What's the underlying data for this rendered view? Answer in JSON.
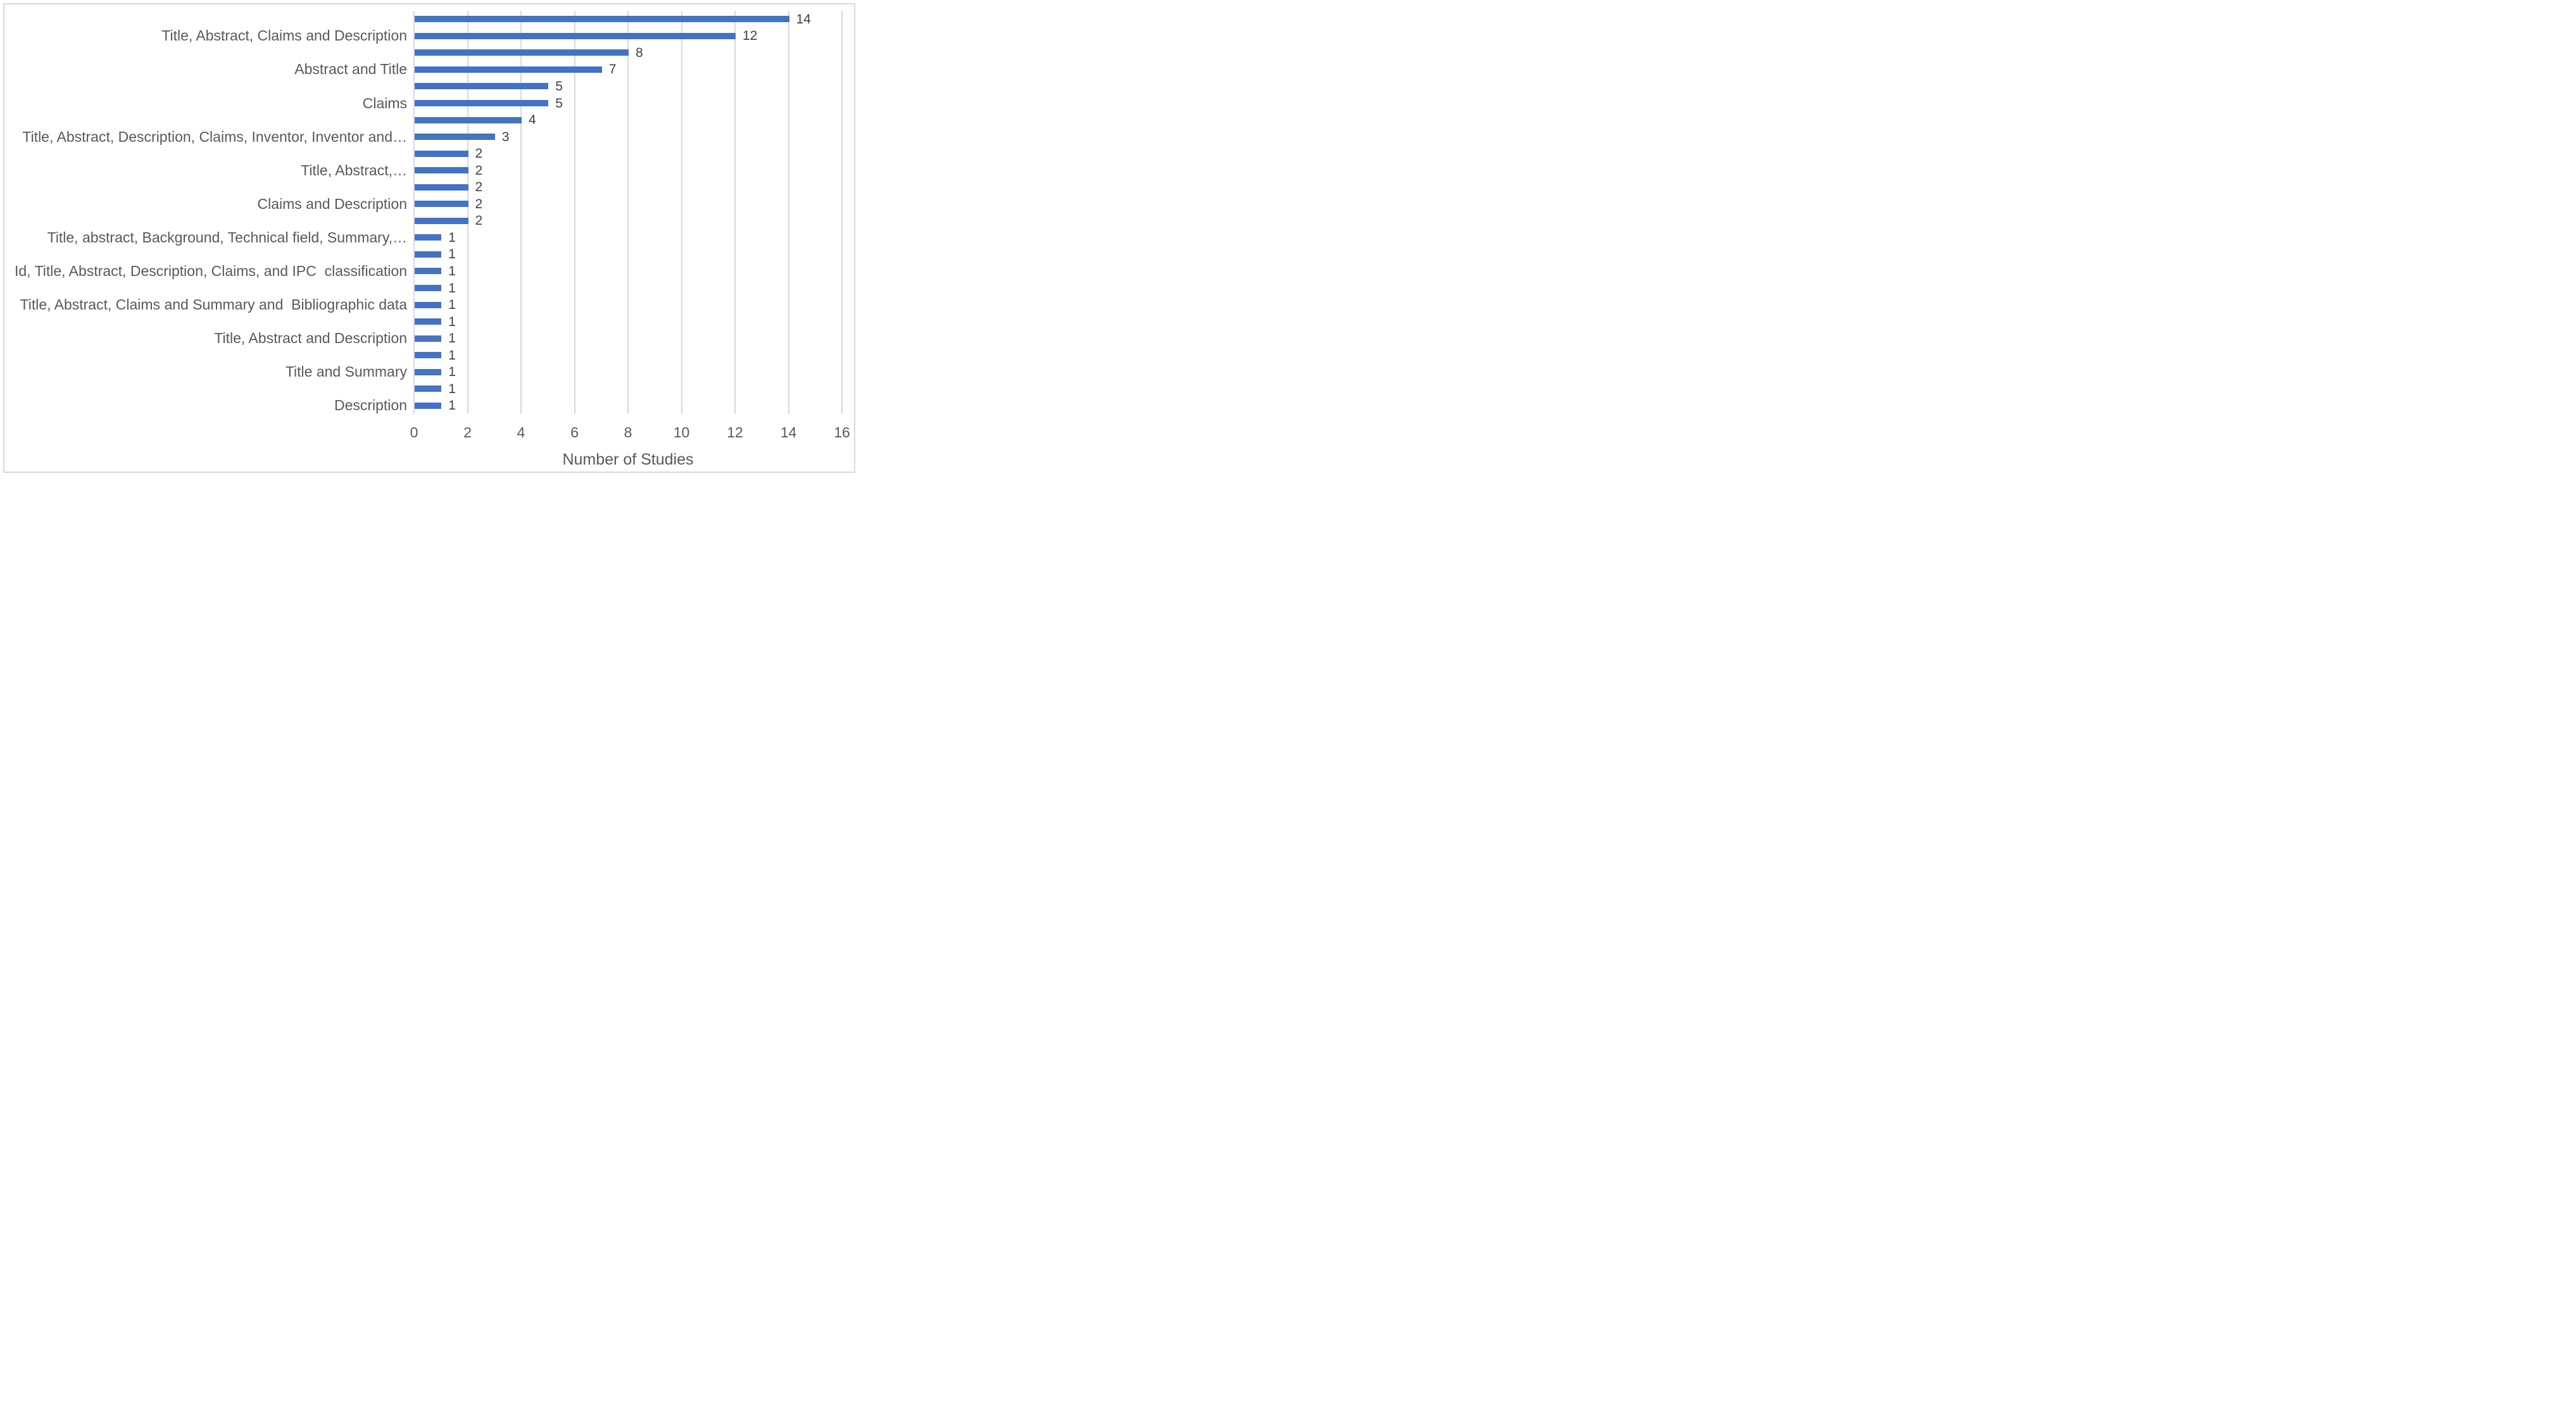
{
  "colors": {
    "bar": "#4472C4",
    "gridline": "#D9D9D9",
    "figure_border": "#D9D9D9",
    "text": "#595959",
    "value_label": "#404040",
    "background": "#FFFFFF"
  },
  "chart_data": {
    "type": "bar",
    "orientation": "horizontal",
    "title": "",
    "xlabel": "Number of Studies",
    "ylabel": "",
    "xlim": [
      0,
      16
    ],
    "xticks": [
      0,
      2,
      4,
      6,
      8,
      10,
      12,
      14,
      16
    ],
    "grid": "vertical gridlines every 2 units",
    "legend": "none",
    "data_labels": "value at end of each bar",
    "bars": [
      {
        "label": "",
        "value": 14
      },
      {
        "label": "Title, Abstract, Claims and Description",
        "value": 12
      },
      {
        "label": "",
        "value": 8
      },
      {
        "label": "Abstract and Title",
        "value": 7
      },
      {
        "label": "",
        "value": 5
      },
      {
        "label": "Claims",
        "value": 5
      },
      {
        "label": "",
        "value": 4
      },
      {
        "label": "Title, Abstract, Description, Claims, Inventor, Inventor and…",
        "value": 3
      },
      {
        "label": "",
        "value": 2
      },
      {
        "label": "Title, Abstract,…",
        "value": 2
      },
      {
        "label": "",
        "value": 2
      },
      {
        "label": "Claims and Description",
        "value": 2
      },
      {
        "label": "",
        "value": 2
      },
      {
        "label": "Title, abstract, Background, Technical field, Summary,…",
        "value": 1
      },
      {
        "label": "",
        "value": 1
      },
      {
        "label": "Id, Title, Abstract, Description, Claims, and IPC  classification",
        "value": 1
      },
      {
        "label": "",
        "value": 1
      },
      {
        "label": "Title, Abstract, Claims and Summary and  Bibliographic data",
        "value": 1
      },
      {
        "label": "",
        "value": 1
      },
      {
        "label": "Title, Abstract and Description",
        "value": 1
      },
      {
        "label": "",
        "value": 1
      },
      {
        "label": "Title and Summary",
        "value": 1
      },
      {
        "label": "",
        "value": 1
      },
      {
        "label": "Description",
        "value": 1
      }
    ]
  }
}
